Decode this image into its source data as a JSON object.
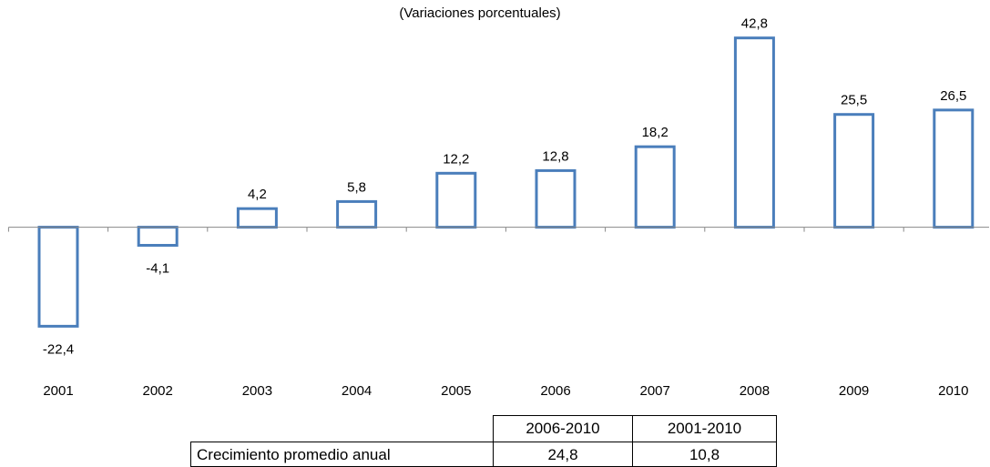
{
  "chart_data": {
    "type": "bar",
    "subtitle": "(Variaciones porcentuales)",
    "categories": [
      "2001",
      "2002",
      "2003",
      "2004",
      "2005",
      "2006",
      "2007",
      "2008",
      "2009",
      "2010"
    ],
    "values": [
      -22.4,
      -4.1,
      4.2,
      5.8,
      12.2,
      12.8,
      18.2,
      42.8,
      25.5,
      26.5
    ],
    "value_labels": [
      "-22,4",
      "-4,1",
      "4,2",
      "5,8",
      "12,2",
      "12,8",
      "18,2",
      "42,8",
      "25,5",
      "26,5"
    ],
    "color": "#4a7ebb",
    "ylim": [
      -25,
      45
    ]
  },
  "table": {
    "header": [
      "2006-2010",
      "2001-2010"
    ],
    "rows": [
      [
        "Crecimiento promedio anual",
        "24,8",
        "10,8"
      ]
    ]
  }
}
